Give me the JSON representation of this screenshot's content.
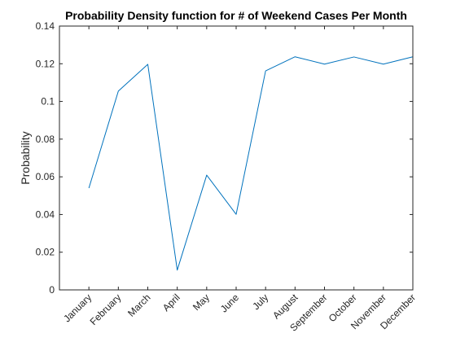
{
  "chart_data": {
    "type": "line",
    "title": "Probability Density function for # of Weekend Cases Per Month",
    "xlabel": "",
    "ylabel": "Probability",
    "categories": [
      "January",
      "February",
      "March",
      "April",
      "May",
      "June",
      "July",
      "August",
      "September",
      "October",
      "November",
      "December"
    ],
    "series": [
      {
        "values": [
          0.054,
          0.1055,
          0.1197,
          0.0105,
          0.0609,
          0.0401,
          0.1162,
          0.1237,
          0.1198,
          0.1236,
          0.1198,
          0.1237
        ],
        "color": "#0072bd"
      }
    ],
    "xlim": [
      0,
      12
    ],
    "ylim": [
      0,
      0.14
    ],
    "yticks": [
      "0",
      "0.02",
      "0.04",
      "0.06",
      "0.08",
      "0.1",
      "0.12",
      "0.14"
    ],
    "grid": false,
    "legend": "none"
  }
}
